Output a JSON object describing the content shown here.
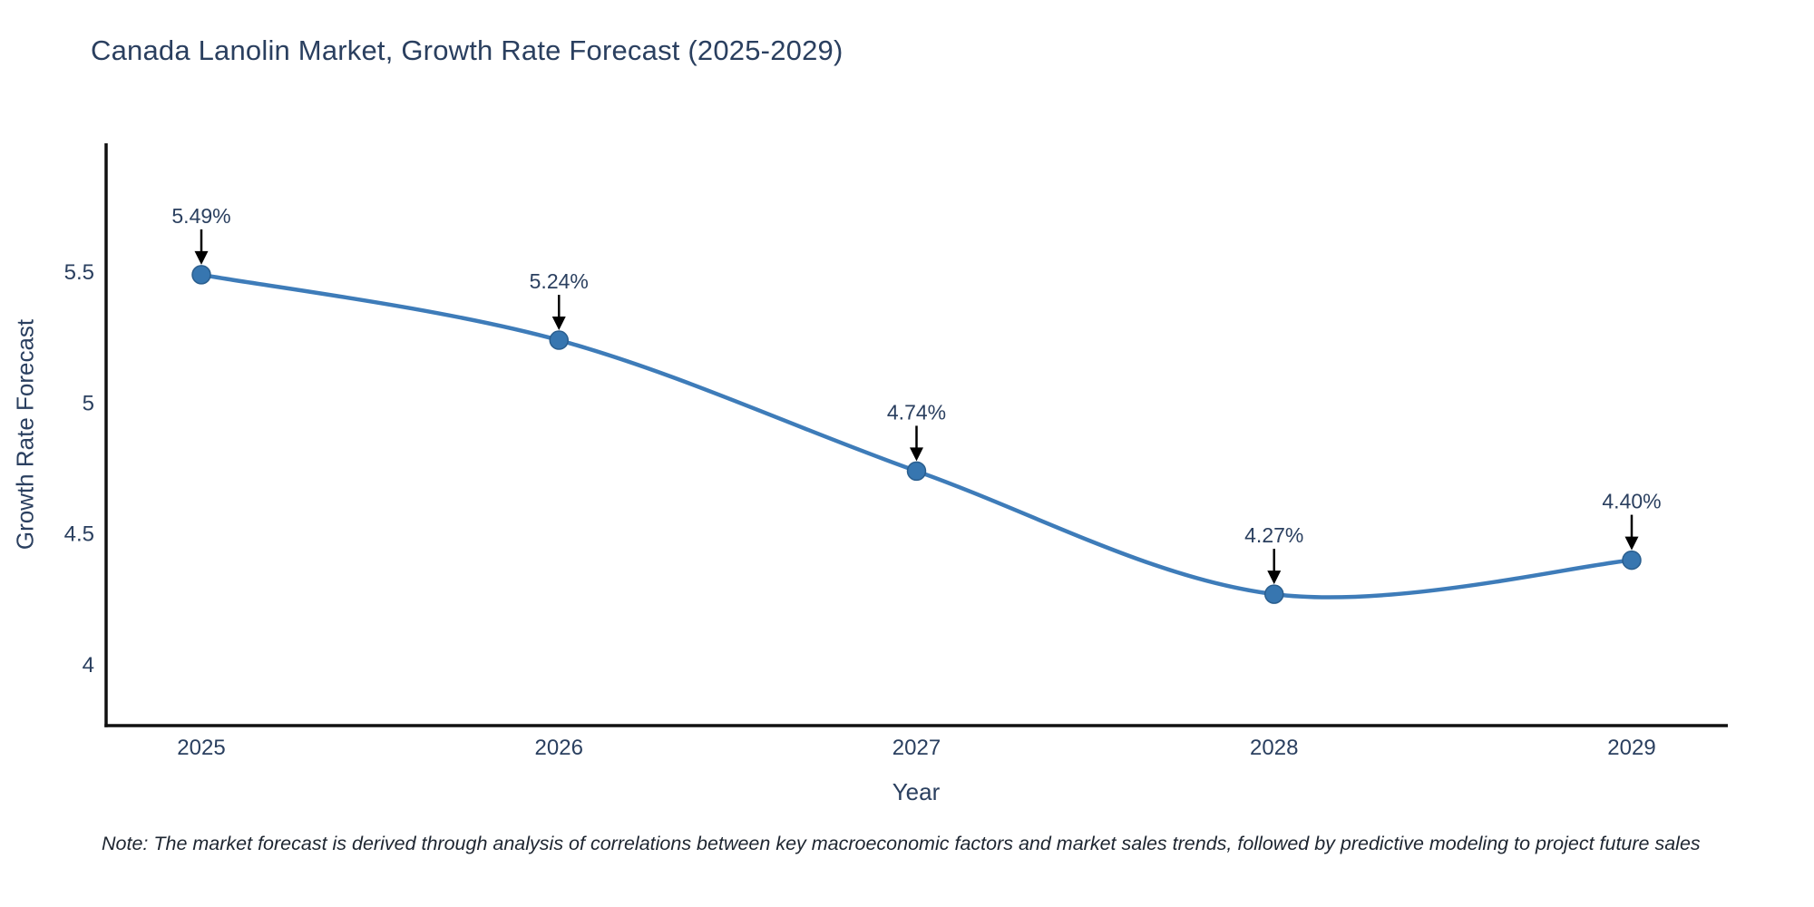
{
  "title": "Canada Lanolin Market, Growth Rate Forecast (2025-2029)",
  "note": "Note: The market forecast is derived through analysis of correlations between key macroeconomic factors and market sales trends, followed by predictive modeling to project future sales",
  "chart_data": {
    "type": "line",
    "title": "Canada Lanolin Market, Growth Rate Forecast (2025-2029)",
    "xlabel": "Year",
    "ylabel": "Growth Rate Forecast",
    "x": [
      2025,
      2026,
      2027,
      2028,
      2029
    ],
    "y": [
      5.49,
      5.24,
      4.74,
      4.27,
      4.4
    ],
    "point_labels": [
      "5.49%",
      "5.24%",
      "4.74%",
      "4.27%",
      "4.40%"
    ],
    "x_tick_labels": [
      "2025",
      "2026",
      "2027",
      "2028",
      "2029"
    ],
    "y_tick_values": [
      5.5,
      5.0,
      4.5,
      4.0
    ],
    "y_tick_labels": [
      "5.5",
      "5",
      "4.5",
      "4"
    ],
    "ylim": [
      3.77,
      6.0
    ],
    "line_shape": "spline",
    "grid": false,
    "legend": "none",
    "colors": {
      "line": "#3E7CB9",
      "marker_fill": "#3776B0",
      "marker_edge": "#2A5E8E",
      "text": "#2a3f5f",
      "axis_line": "#111111",
      "annotation_arrow": "#000000",
      "background": "#ffffff"
    }
  }
}
